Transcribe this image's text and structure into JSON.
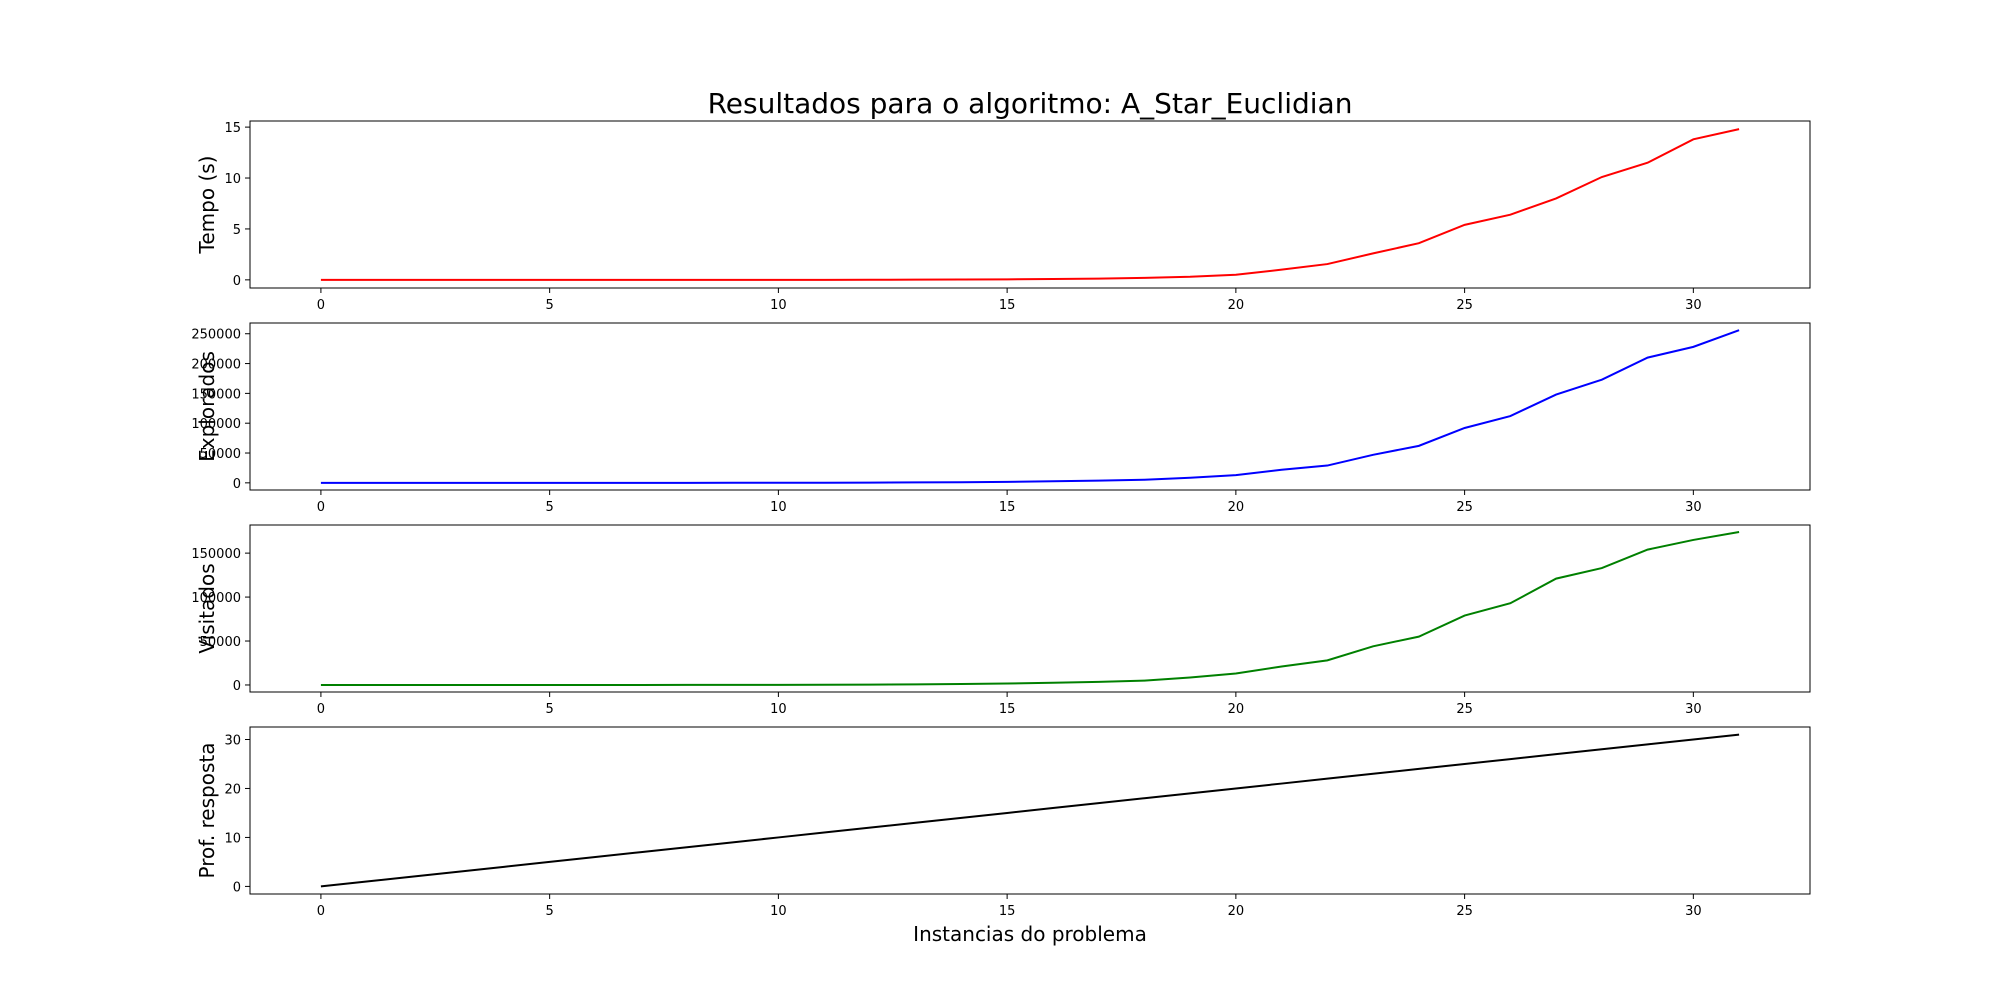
{
  "figure": {
    "title": "Resultados para o algoritmo: A_Star_Euclidian",
    "xlabel": "Instancias do problema"
  },
  "chart_data": [
    {
      "type": "line",
      "ylabel": "Tempo (s)",
      "color": "#ff0000",
      "xlim": [
        -1.55,
        32.55
      ],
      "ylim": [
        -0.8,
        15.6
      ],
      "xticks": [
        0,
        5,
        10,
        15,
        20,
        25,
        30
      ],
      "yticks": [
        0,
        5,
        10,
        15
      ],
      "x": [
        0,
        1,
        2,
        3,
        4,
        5,
        6,
        7,
        8,
        9,
        10,
        11,
        12,
        13,
        14,
        15,
        16,
        17,
        18,
        19,
        20,
        21,
        22,
        23,
        24,
        25,
        26,
        27,
        28,
        29,
        30,
        31
      ],
      "y": [
        0,
        0,
        0,
        0,
        0,
        0,
        0,
        0,
        0,
        0,
        0,
        0,
        0.01,
        0.02,
        0.03,
        0.05,
        0.08,
        0.12,
        0.2,
        0.3,
        0.5,
        1.0,
        1.55,
        2.6,
        3.6,
        5.4,
        6.4,
        8.0,
        10.1,
        11.5,
        13.8,
        14.8
      ]
    },
    {
      "type": "line",
      "ylabel": "Explorados",
      "color": "#0000ff",
      "xlim": [
        -1.55,
        32.55
      ],
      "ylim": [
        -12000,
        268000
      ],
      "xticks": [
        0,
        5,
        10,
        15,
        20,
        25,
        30
      ],
      "yticks": [
        0,
        50000,
        100000,
        150000,
        200000,
        250000
      ],
      "x": [
        0,
        1,
        2,
        3,
        4,
        5,
        6,
        7,
        8,
        9,
        10,
        11,
        12,
        13,
        14,
        15,
        16,
        17,
        18,
        19,
        20,
        21,
        22,
        23,
        24,
        25,
        26,
        27,
        28,
        29,
        30,
        31
      ],
      "y": [
        0,
        0,
        0,
        0,
        0,
        0,
        10,
        20,
        40,
        80,
        150,
        250,
        400,
        700,
        1100,
        1700,
        2600,
        3800,
        5200,
        8500,
        13000,
        22000,
        29000,
        47000,
        62000,
        92000,
        112000,
        148000,
        173000,
        210000,
        228000,
        256000
      ]
    },
    {
      "type": "line",
      "ylabel": "Visitados",
      "color": "#008000",
      "xlim": [
        -1.55,
        32.55
      ],
      "ylim": [
        -8000,
        182000
      ],
      "xticks": [
        0,
        5,
        10,
        15,
        20,
        25,
        30
      ],
      "yticks": [
        0,
        50000,
        100000,
        150000
      ],
      "x": [
        0,
        1,
        2,
        3,
        4,
        5,
        6,
        7,
        8,
        9,
        10,
        11,
        12,
        13,
        14,
        15,
        16,
        17,
        18,
        19,
        20,
        21,
        22,
        23,
        24,
        25,
        26,
        27,
        28,
        29,
        30,
        31
      ],
      "y": [
        0,
        0,
        0,
        0,
        0,
        0,
        10,
        20,
        40,
        80,
        150,
        250,
        400,
        700,
        1100,
        1600,
        2500,
        3500,
        5000,
        8500,
        13000,
        21000,
        28000,
        44000,
        55000,
        79000,
        93000,
        121000,
        133000,
        154000,
        165000,
        174000
      ]
    },
    {
      "type": "line",
      "ylabel": "Prof. resposta",
      "color": "#000000",
      "xlim": [
        -1.55,
        32.55
      ],
      "ylim": [
        -1.55,
        32.55
      ],
      "xticks": [
        0,
        5,
        10,
        15,
        20,
        25,
        30
      ],
      "yticks": [
        0,
        10,
        20,
        30
      ],
      "x": [
        0,
        1,
        2,
        3,
        4,
        5,
        6,
        7,
        8,
        9,
        10,
        11,
        12,
        13,
        14,
        15,
        16,
        17,
        18,
        19,
        20,
        21,
        22,
        23,
        24,
        25,
        26,
        27,
        28,
        29,
        30,
        31
      ],
      "y": [
        0,
        1,
        2,
        3,
        4,
        5,
        6,
        7,
        8,
        9,
        10,
        11,
        12,
        13,
        14,
        15,
        16,
        17,
        18,
        19,
        20,
        21,
        22,
        23,
        24,
        25,
        26,
        27,
        28,
        29,
        30,
        31
      ]
    }
  ]
}
